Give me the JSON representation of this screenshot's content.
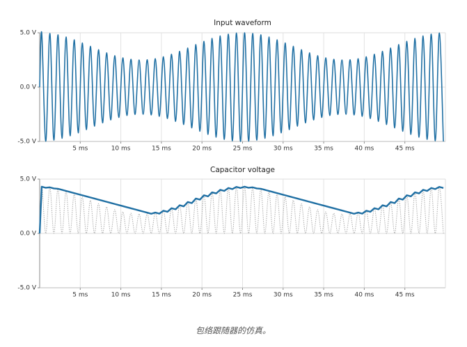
{
  "chart_data": [
    {
      "type": "line",
      "title": "Input waveform",
      "x": [
        0,
        0.25,
        0.75,
        1.25,
        1.75,
        2.25,
        2.75,
        3.25,
        3.75,
        4.25,
        4.75,
        5.25,
        5.75,
        6.25,
        6.75,
        7.25,
        7.75,
        8.25,
        8.75,
        9.25,
        9.75,
        10.25,
        10.75,
        11.25,
        11.75,
        12.25,
        12.75,
        13.25,
        13.75,
        14.25,
        14.75,
        15.25,
        15.75,
        16.25,
        16.75,
        17.25,
        17.75,
        18.25,
        18.75,
        19.25,
        19.75,
        20.25,
        20.75,
        21.25,
        21.75,
        22.25,
        22.75,
        23.25,
        23.75,
        24.25,
        24.75,
        25.25,
        25.75,
        26.25,
        26.75,
        27.25,
        27.75,
        28.25,
        28.75,
        29.25,
        29.75,
        30.25,
        30.75,
        31.25,
        31.75,
        32.25,
        32.75,
        33.25,
        33.75,
        34.25,
        34.75,
        35.25,
        35.75,
        36.25,
        36.75,
        37.25,
        37.75,
        38.25,
        38.75,
        39.25,
        39.75,
        40.25,
        40.75,
        41.25,
        41.75,
        42.25,
        42.75,
        43.25,
        43.75,
        44.25,
        44.75,
        45.25,
        45.75,
        46.25,
        46.75,
        47.25,
        47.75,
        48.25,
        48.75,
        49.25,
        49.75
      ],
      "series": [
        {
          "color": "#1f6fa3",
          "style": "solid",
          "smooth": true,
          "values": [
            0,
            5,
            -4.98,
            4.94,
            -4.88,
            4.81,
            -4.71,
            4.61,
            -4.48,
            4.35,
            -4.21,
            4.06,
            -3.91,
            3.75,
            -3.59,
            3.44,
            -3.29,
            3.15,
            -3.02,
            2.89,
            -2.79,
            2.69,
            -2.62,
            2.56,
            -2.52,
            2.5,
            -2.5,
            2.52,
            -2.56,
            2.62,
            -2.69,
            2.79,
            -2.89,
            3.02,
            -3.15,
            3.29,
            -3.44,
            3.59,
            -3.75,
            3.91,
            -4.06,
            4.21,
            -4.35,
            4.48,
            -4.61,
            4.71,
            -4.81,
            4.88,
            -4.94,
            4.98,
            -5,
            5,
            -4.98,
            4.94,
            -4.88,
            4.81,
            -4.71,
            4.61,
            -4.48,
            4.35,
            -4.21,
            4.06,
            -3.91,
            3.75,
            -3.59,
            3.44,
            -3.29,
            3.15,
            -3.02,
            2.89,
            -2.79,
            2.69,
            -2.62,
            2.56,
            -2.52,
            2.5,
            -2.5,
            2.52,
            -2.56,
            2.62,
            -2.69,
            2.79,
            -2.89,
            3.02,
            -3.15,
            3.29,
            -3.44,
            3.59,
            -3.75,
            3.91,
            -4.06,
            4.21,
            -4.35,
            4.48,
            -4.61,
            4.71,
            -4.81,
            4.88,
            -4.94,
            4.98,
            -5
          ]
        }
      ],
      "xlim": [
        0,
        50
      ],
      "ylim": [
        -5,
        5
      ],
      "xticks": [
        {
          "value": 5,
          "label": "5 ms"
        },
        {
          "value": 10,
          "label": "10 ms"
        },
        {
          "value": 15,
          "label": "15 ms"
        },
        {
          "value": 20,
          "label": "20 ms"
        },
        {
          "value": 25,
          "label": "25 ms"
        },
        {
          "value": 30,
          "label": "30 ms"
        },
        {
          "value": 35,
          "label": "35 ms"
        },
        {
          "value": 40,
          "label": "40 ms"
        },
        {
          "value": 45,
          "label": "45 ms"
        }
      ],
      "yticks": [
        {
          "value": -5,
          "label": "-5.0 V"
        },
        {
          "value": 0,
          "label": "0.0 V"
        },
        {
          "value": 5,
          "label": "5.0 V"
        }
      ],
      "grid": true
    },
    {
      "type": "line",
      "title": "Capacitor voltage",
      "x": [
        0,
        0.25,
        0.75,
        1.25,
        1.75,
        2.25,
        2.75,
        3.25,
        3.75,
        4.25,
        4.75,
        5.25,
        5.75,
        6.25,
        6.75,
        7.25,
        7.75,
        8.25,
        8.75,
        9.25,
        9.75,
        10.25,
        10.75,
        11.25,
        11.75,
        12.25,
        12.75,
        13.25,
        13.75,
        14.25,
        14.75,
        15.25,
        15.75,
        16.25,
        16.75,
        17.25,
        17.75,
        18.25,
        18.75,
        19.25,
        19.75,
        20.25,
        20.75,
        21.25,
        21.75,
        22.25,
        22.75,
        23.25,
        23.75,
        24.25,
        24.75,
        25.25,
        25.75,
        26.25,
        26.75,
        27.25,
        27.75,
        28.25,
        28.75,
        29.25,
        29.75,
        30.25,
        30.75,
        31.25,
        31.75,
        32.25,
        32.75,
        33.25,
        33.75,
        34.25,
        34.75,
        35.25,
        35.75,
        36.25,
        36.75,
        37.25,
        37.75,
        38.25,
        38.75,
        39.25,
        39.75,
        40.25,
        40.75,
        41.25,
        41.75,
        42.25,
        42.75,
        43.25,
        43.75,
        44.25,
        44.75,
        45.25,
        45.75,
        46.25,
        46.75,
        47.25,
        47.75,
        48.25,
        48.75,
        49.25,
        49.75
      ],
      "series": [
        {
          "color": "#aaaaaa",
          "style": "dotted",
          "smooth": true,
          "values": [
            0,
            4.3,
            0,
            4.24,
            0,
            4.11,
            0,
            3.91,
            0,
            3.65,
            0,
            3.36,
            0,
            3.05,
            0,
            2.74,
            0,
            2.45,
            0,
            2.19,
            0,
            1.99,
            0,
            1.86,
            0,
            1.8,
            0,
            1.82,
            0,
            1.92,
            0,
            2.09,
            0,
            2.32,
            0,
            2.59,
            0,
            2.89,
            0,
            3.21,
            0,
            3.51,
            0,
            3.78,
            0,
            4.01,
            0,
            4.18,
            0,
            4.28,
            0,
            4.3,
            0,
            4.24,
            0,
            4.11,
            0,
            3.91,
            0,
            3.65,
            0,
            3.36,
            0,
            3.05,
            0,
            2.74,
            0,
            2.45,
            0,
            2.19,
            0,
            1.99,
            0,
            1.86,
            0,
            1.8,
            0,
            1.82,
            0,
            1.92,
            0,
            2.09,
            0,
            2.32,
            0,
            2.59,
            0,
            2.89,
            0,
            3.21,
            0,
            3.51,
            0,
            3.78,
            0,
            4.01,
            0,
            4.18,
            0,
            4.28,
            0
          ]
        },
        {
          "color": "#1f6fa3",
          "style": "solid",
          "smooth": false,
          "values": [
            0,
            4.3,
            4.2,
            4.24,
            4.14,
            4.11,
            4.01,
            3.91,
            3.81,
            3.71,
            3.61,
            3.51,
            3.41,
            3.31,
            3.21,
            3.11,
            3.01,
            2.91,
            2.81,
            2.71,
            2.61,
            2.51,
            2.41,
            2.31,
            2.21,
            2.11,
            2.01,
            1.91,
            1.81,
            1.92,
            1.82,
            2.09,
            1.99,
            2.32,
            2.22,
            2.59,
            2.49,
            2.89,
            2.79,
            3.21,
            3.11,
            3.51,
            3.41,
            3.78,
            3.68,
            4.01,
            3.91,
            4.18,
            4.08,
            4.28,
            4.18,
            4.3,
            4.2,
            4.24,
            4.14,
            4.11,
            4.01,
            3.91,
            3.81,
            3.71,
            3.61,
            3.51,
            3.41,
            3.31,
            3.21,
            3.11,
            3.01,
            2.91,
            2.81,
            2.71,
            2.61,
            2.51,
            2.41,
            2.31,
            2.21,
            2.11,
            2.01,
            1.91,
            1.81,
            1.92,
            1.82,
            2.09,
            1.99,
            2.32,
            2.22,
            2.59,
            2.49,
            2.89,
            2.79,
            3.21,
            3.11,
            3.51,
            3.41,
            3.78,
            3.68,
            4.01,
            3.91,
            4.18,
            4.08,
            4.28,
            4.18
          ]
        }
      ],
      "xlim": [
        0,
        50
      ],
      "ylim": [
        -5,
        5
      ],
      "xticks": [
        {
          "value": 5,
          "label": "5 ms"
        },
        {
          "value": 10,
          "label": "10 ms"
        },
        {
          "value": 15,
          "label": "15 ms"
        },
        {
          "value": 20,
          "label": "20 ms"
        },
        {
          "value": 25,
          "label": "25 ms"
        },
        {
          "value": 30,
          "label": "30 ms"
        },
        {
          "value": 35,
          "label": "35 ms"
        },
        {
          "value": 40,
          "label": "40 ms"
        },
        {
          "value": 45,
          "label": "45 ms"
        }
      ],
      "yticks": [
        {
          "value": -5,
          "label": "-5.0 V"
        },
        {
          "value": 0,
          "label": "0.0 V"
        },
        {
          "value": 5,
          "label": "5.0 V"
        }
      ],
      "grid": true
    }
  ],
  "caption": "包络跟随器的仿真。"
}
